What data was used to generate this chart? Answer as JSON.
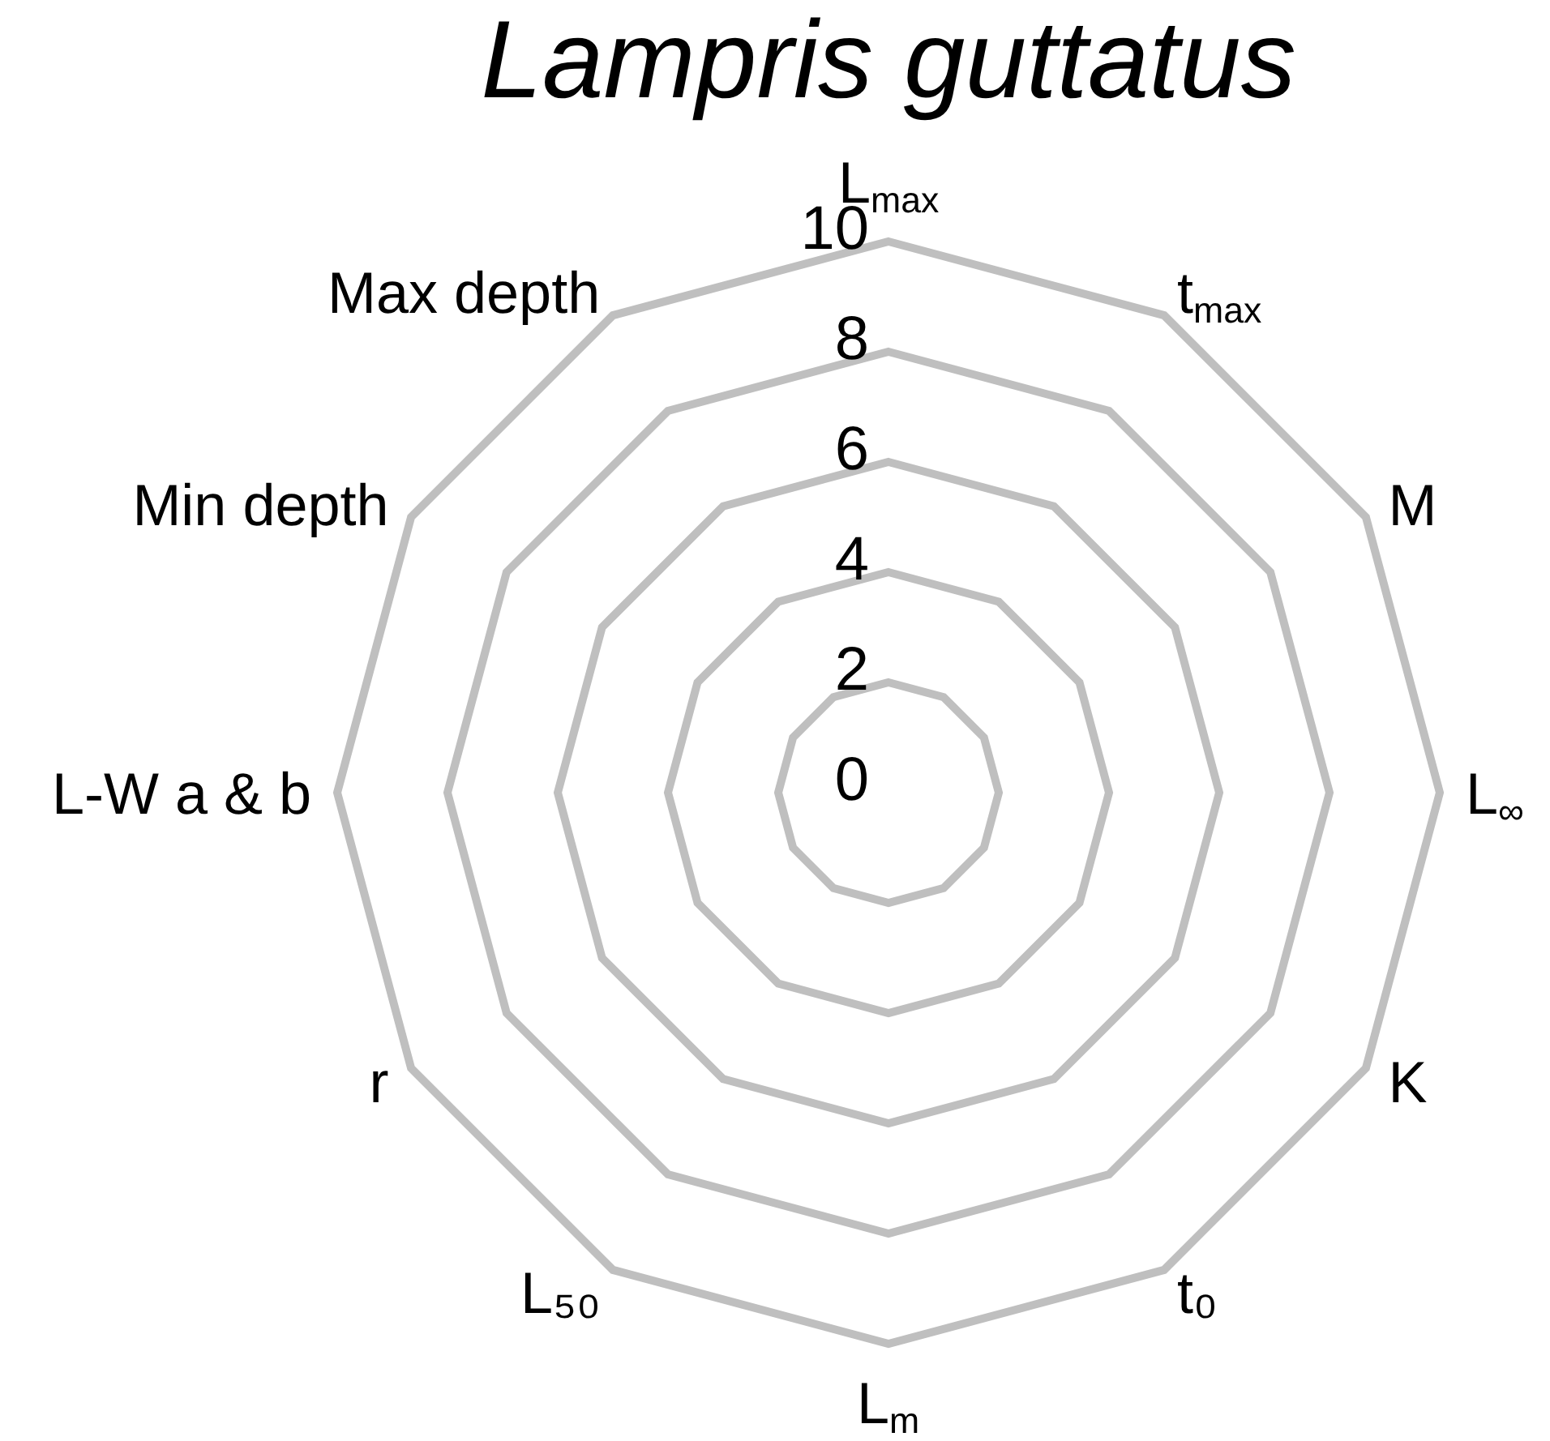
{
  "chart_data": {
    "type": "radar",
    "title": "Lampris guttatus",
    "categories": [
      "L$_{max}$",
      "t$_{max}$",
      "M",
      "L$_{∞}$",
      "K",
      "t₀",
      "L$_{m}$",
      "L₅₀",
      "r",
      "L-W a & b",
      "Min depth",
      "Max depth"
    ],
    "ylim": [
      0,
      10
    ],
    "yticks": [
      0,
      2,
      4,
      6,
      8,
      10
    ],
    "grid": true
  }
}
